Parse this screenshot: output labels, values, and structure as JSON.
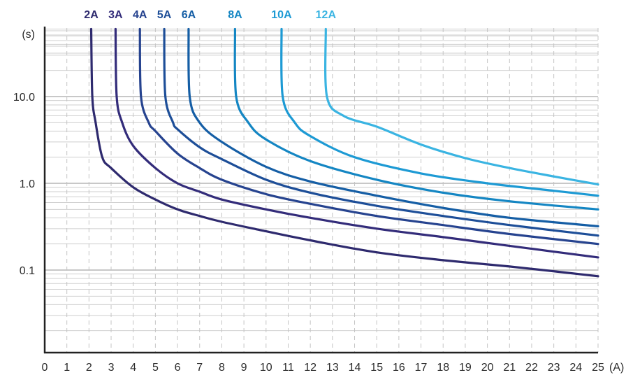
{
  "chart_data": {
    "type": "line",
    "title": "",
    "xlabel": "(A)",
    "ylabel": "(s)",
    "xlim": [
      0,
      25
    ],
    "ylim_log10": [
      -2,
      1.8
    ],
    "y_scale": "log",
    "grid": true,
    "legend_position": "top",
    "x_ticks": [
      "0",
      "1",
      "2",
      "3",
      "4",
      "5",
      "6",
      "7",
      "8",
      "9",
      "10",
      "11",
      "12",
      "13",
      "14",
      "15",
      "16",
      "17",
      "18",
      "19",
      "20",
      "21",
      "22",
      "23",
      "24",
      "25"
    ],
    "y_ticks": [
      {
        "value": 10.0,
        "label": "10.0"
      },
      {
        "value": 1.0,
        "label": "1.0"
      },
      {
        "value": 0.1,
        "label": "0.1"
      }
    ],
    "series": [
      {
        "name": "2A",
        "color": "#2e2a6e",
        "points": [
          [
            2.1,
            60
          ],
          [
            2.15,
            10
          ],
          [
            2.3,
            5
          ],
          [
            2.6,
            2
          ],
          [
            3,
            1.5
          ],
          [
            4,
            0.9
          ],
          [
            5,
            0.65
          ],
          [
            6,
            0.5
          ],
          [
            7,
            0.42
          ],
          [
            8,
            0.36
          ],
          [
            10,
            0.28
          ],
          [
            12,
            0.22
          ],
          [
            15,
            0.16
          ],
          [
            18,
            0.13
          ],
          [
            21,
            0.11
          ],
          [
            25,
            0.085
          ]
        ]
      },
      {
        "name": "3A",
        "color": "#332c7a",
        "points": [
          [
            3.2,
            60
          ],
          [
            3.25,
            10
          ],
          [
            3.5,
            5
          ],
          [
            4,
            2.7
          ],
          [
            5,
            1.5
          ],
          [
            6,
            1.0
          ],
          [
            7,
            0.8
          ],
          [
            8,
            0.65
          ],
          [
            10,
            0.5
          ],
          [
            12,
            0.4
          ],
          [
            15,
            0.3
          ],
          [
            18,
            0.24
          ],
          [
            21,
            0.19
          ],
          [
            25,
            0.14
          ]
        ]
      },
      {
        "name": "4A",
        "color": "#26438f",
        "points": [
          [
            4.3,
            60
          ],
          [
            4.35,
            10
          ],
          [
            4.7,
            5
          ],
          [
            5,
            4
          ],
          [
            6,
            2.2
          ],
          [
            7,
            1.5
          ],
          [
            8,
            1.1
          ],
          [
            10,
            0.75
          ],
          [
            12,
            0.58
          ],
          [
            15,
            0.42
          ],
          [
            18,
            0.33
          ],
          [
            21,
            0.26
          ],
          [
            25,
            0.2
          ]
        ]
      },
      {
        "name": "5A",
        "color": "#1d4e98",
        "points": [
          [
            5.4,
            60
          ],
          [
            5.45,
            10
          ],
          [
            5.8,
            5
          ],
          [
            6,
            4.2
          ],
          [
            7,
            2.6
          ],
          [
            8,
            1.9
          ],
          [
            10,
            1.1
          ],
          [
            12,
            0.78
          ],
          [
            15,
            0.55
          ],
          [
            18,
            0.42
          ],
          [
            21,
            0.33
          ],
          [
            25,
            0.25
          ]
        ]
      },
      {
        "name": "6A",
        "color": "#155ea5",
        "points": [
          [
            6.5,
            60
          ],
          [
            6.55,
            10
          ],
          [
            7,
            5
          ],
          [
            8,
            3.0
          ],
          [
            10,
            1.55
          ],
          [
            12,
            1.05
          ],
          [
            15,
            0.72
          ],
          [
            18,
            0.52
          ],
          [
            21,
            0.4
          ],
          [
            25,
            0.32
          ]
        ]
      },
      {
        "name": "8A",
        "color": "#1486c3",
        "points": [
          [
            8.6,
            60
          ],
          [
            8.65,
            10
          ],
          [
            9.2,
            5
          ],
          [
            10,
            3.2
          ],
          [
            12,
            1.8
          ],
          [
            15,
            1.1
          ],
          [
            18,
            0.78
          ],
          [
            21,
            0.62
          ],
          [
            25,
            0.5
          ]
        ]
      },
      {
        "name": "10A",
        "color": "#1d9ad4",
        "points": [
          [
            10.7,
            60
          ],
          [
            10.75,
            10
          ],
          [
            11.3,
            5
          ],
          [
            12,
            3.5
          ],
          [
            14,
            2.0
          ],
          [
            17,
            1.3
          ],
          [
            20,
            1.0
          ],
          [
            23,
            0.82
          ],
          [
            25,
            0.72
          ]
        ]
      },
      {
        "name": "12A",
        "color": "#3ab4e2",
        "points": [
          [
            12.7,
            60
          ],
          [
            12.75,
            10
          ],
          [
            13.5,
            6
          ],
          [
            15,
            4.5
          ],
          [
            17,
            2.8
          ],
          [
            19,
            1.95
          ],
          [
            21,
            1.5
          ],
          [
            23,
            1.2
          ],
          [
            25,
            0.97
          ]
        ]
      }
    ]
  }
}
